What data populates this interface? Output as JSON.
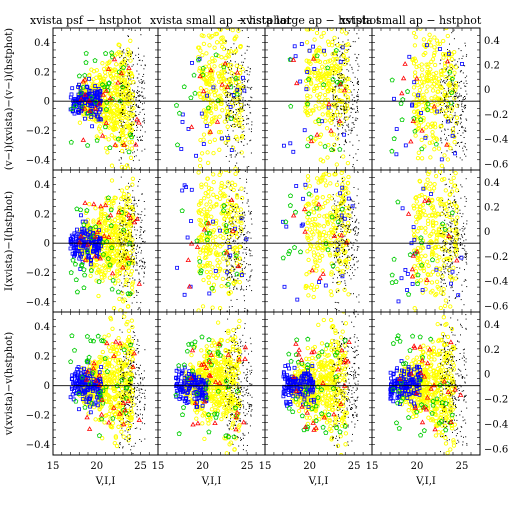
{
  "chart_data": {
    "type": "scatter",
    "panel_titles": [
      "xvista psf − hstphot",
      "xvista small ap − hstphot",
      "xvista large ap − hstphot",
      "xvista small ap − hstphot"
    ],
    "xlabel": "V,I,I",
    "row_ylabels": [
      "(v−i)(xvista)−(v−i)(hstphot)",
      "I(xvista)−I(hstphot)",
      "v(xvista)−v(hstphot)"
    ],
    "xlim": [
      15,
      27
    ],
    "ylim": [
      -0.47,
      0.5
    ],
    "ylim_right": [
      -0.65,
      0.5
    ],
    "x_ticks": [
      "15",
      "20",
      "25"
    ],
    "y_ticks_left": [
      "0.4",
      "0.2",
      "0",
      "−0.2",
      "−0.4"
    ],
    "y_ticks_right": [
      "0.4",
      "0.2",
      "0",
      "−0.2",
      "−0.4",
      "−0.6"
    ],
    "zero_line": 0,
    "series": [
      {
        "marker": "dot",
        "color": "#000000"
      },
      {
        "marker": "square",
        "color": "#0000ff"
      },
      {
        "marker": "pentagon",
        "color": "#00cc00"
      },
      {
        "marker": "triangle",
        "color": "#ff0000"
      },
      {
        "marker": "circle",
        "color": "#ffff00"
      }
    ],
    "panel_shapes": [
      [
        "broad",
        "sparse",
        "sparse",
        "sparse"
      ],
      [
        "broad",
        "sparse",
        "sparse",
        "sparse"
      ],
      [
        "broad",
        "broad",
        "broad",
        "broad"
      ]
    ]
  }
}
